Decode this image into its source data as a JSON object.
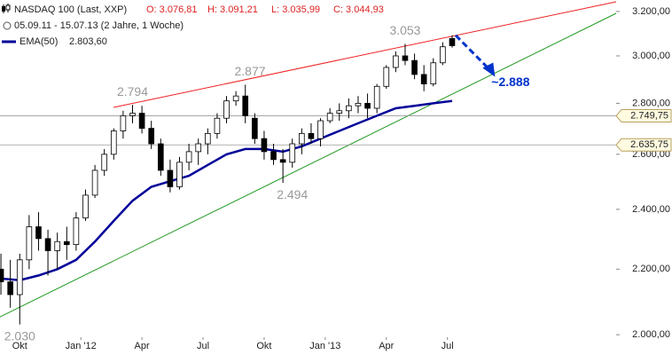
{
  "chart_data": {
    "type": "candlestick",
    "header": {
      "title": "NASDAQ 100 (Last, XXP)",
      "open": "O: 3.076,81",
      "high": "H: 3.091,21",
      "low": "L: 3.035,99",
      "close": "C: 3.044,93",
      "period": "05.09.11 - 15.07.13 (2 Jahre, 1 Woche)"
    },
    "log_scale": true,
    "x": [
      0,
      2,
      4,
      6,
      8,
      10,
      12,
      14,
      16,
      18,
      20,
      22,
      24,
      26,
      28,
      30,
      32,
      34,
      36,
      38,
      40,
      42,
      44,
      46,
      48,
      50,
      52,
      54,
      56,
      58,
      60,
      62,
      64,
      66,
      68,
      70,
      72,
      74,
      76,
      78,
      80,
      82,
      84,
      86,
      88,
      90,
      92,
      94,
      96
    ],
    "open": [
      2200,
      2160,
      2120,
      2230,
      2340,
      2300,
      2260,
      2290,
      2280,
      2370,
      2450,
      2540,
      2600,
      2690,
      2750,
      2760,
      2700,
      2640,
      2540,
      2480,
      2570,
      2610,
      2640,
      2680,
      2740,
      2810,
      2830,
      2740,
      2660,
      2610,
      2580,
      2570,
      2640,
      2680,
      2660,
      2730,
      2760,
      2770,
      2790,
      2800,
      2780,
      2870,
      2950,
      3000,
      2980,
      2920,
      2880,
      2970,
      3076.81
    ],
    "high": [
      2250,
      2230,
      2250,
      2380,
      2390,
      2330,
      2320,
      2340,
      2390,
      2470,
      2560,
      2620,
      2700,
      2770,
      2794,
      2790,
      2730,
      2660,
      2580,
      2590,
      2640,
      2660,
      2700,
      2760,
      2830,
      2850,
      2877,
      2760,
      2690,
      2640,
      2620,
      2660,
      2700,
      2720,
      2740,
      2780,
      2800,
      2820,
      2830,
      2840,
      2880,
      2960,
      3020,
      3053,
      3010,
      2960,
      2990,
      3060,
      3091.21
    ],
    "low": [
      2120,
      2080,
      2030,
      2200,
      2260,
      2180,
      2200,
      2230,
      2260,
      2360,
      2440,
      2520,
      2580,
      2660,
      2720,
      2680,
      2620,
      2520,
      2460,
      2470,
      2540,
      2560,
      2600,
      2660,
      2720,
      2790,
      2720,
      2640,
      2580,
      2560,
      2494,
      2550,
      2600,
      2640,
      2630,
      2720,
      2730,
      2740,
      2760,
      2740,
      2760,
      2860,
      2930,
      2960,
      2900,
      2850,
      2870,
      2960,
      3035.99
    ],
    "close": [
      2160,
      2120,
      2230,
      2340,
      2300,
      2260,
      2290,
      2280,
      2370,
      2450,
      2540,
      2600,
      2690,
      2750,
      2760,
      2700,
      2640,
      2540,
      2480,
      2570,
      2610,
      2640,
      2680,
      2740,
      2810,
      2830,
      2750,
      2660,
      2610,
      2580,
      2570,
      2640,
      2680,
      2660,
      2730,
      2760,
      2770,
      2790,
      2800,
      2780,
      2870,
      2950,
      3000,
      2980,
      2920,
      2880,
      2970,
      3040,
      3044.93
    ],
    "ema": {
      "name": "EMA(50)",
      "value_label": "2.803,60",
      "color": "#000099",
      "x": [
        0,
        4,
        8,
        12,
        16,
        20,
        24,
        28,
        32,
        36,
        40,
        44,
        48,
        52,
        56,
        60,
        64,
        68,
        72,
        76,
        80,
        84,
        88,
        92,
        96
      ],
      "values": [
        2170,
        2165,
        2180,
        2200,
        2230,
        2290,
        2360,
        2430,
        2480,
        2500,
        2520,
        2560,
        2600,
        2620,
        2620,
        2610,
        2630,
        2660,
        2690,
        2720,
        2750,
        2780,
        2790,
        2800,
        2810
      ]
    },
    "levels": [
      {
        "value": 2749.75,
        "label": "2.749,75"
      },
      {
        "value": 2635.75,
        "label": "2.635,75"
      }
    ],
    "annotations": [
      {
        "label": "2.794",
        "value": 2794,
        "x": 28,
        "side": "above",
        "color": "#999999"
      },
      {
        "label": "2.877",
        "value": 2877,
        "x": 53,
        "side": "above",
        "color": "#999999"
      },
      {
        "label": "3.053",
        "value": 3053,
        "x": 86,
        "side": "above",
        "color": "#999999"
      },
      {
        "label": "2.494",
        "value": 2494,
        "x": 62,
        "side": "below",
        "color": "#999999"
      },
      {
        "label": "2.030",
        "value": 2030,
        "x": 4,
        "side": "below",
        "color": "#999999"
      },
      {
        "label": "~2.888",
        "value": 2888,
        "x": 107,
        "side": "right",
        "color": "#0033cc"
      }
    ],
    "xlim": [
      -0.2,
      130.9
    ],
    "ylim": [
      1962,
      3254
    ],
    "xticks": [
      {
        "value": 4,
        "label": "Okt"
      },
      {
        "value": 17,
        "label": "Jan '12"
      },
      {
        "value": 30,
        "label": "Apr"
      },
      {
        "value": 43,
        "label": "Jul"
      },
      {
        "value": 56,
        "label": "Okt"
      },
      {
        "value": 69,
        "label": "Jan '13"
      },
      {
        "value": 82,
        "label": "Apr"
      },
      {
        "value": 95,
        "label": "Jul"
      }
    ],
    "yticks": [
      {
        "value": 3200,
        "label": "3.200,00"
      },
      {
        "value": 3000,
        "label": "3.000,00"
      },
      {
        "value": 2800,
        "label": "2.800,00"
      },
      {
        "value": 2600,
        "label": "2.600,00"
      },
      {
        "value": 2400,
        "label": "2.400,00"
      },
      {
        "value": 2200,
        "label": "2.200,00"
      },
      {
        "value": 2000,
        "label": "2.000,00"
      }
    ]
  }
}
